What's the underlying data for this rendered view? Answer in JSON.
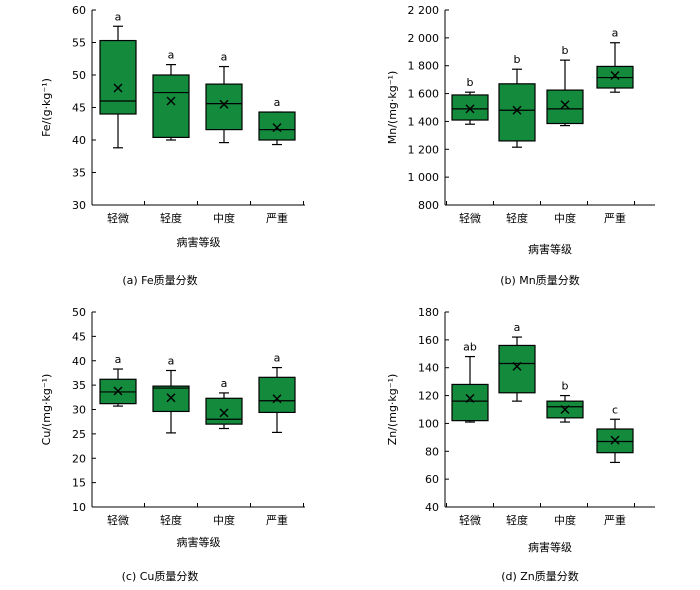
{
  "figure": {
    "box_fill": "#138a3c",
    "stroke": "#000000"
  },
  "chart_data": [
    {
      "id": "a",
      "type": "box",
      "caption": "(a)  Fe质量分数",
      "ylabel": "Fe/(g·kg⁻¹)",
      "xlabel": "病害等级",
      "ylim": [
        30,
        60
      ],
      "yticks": [
        30,
        35,
        40,
        45,
        50,
        55,
        60
      ],
      "ytick_labels": [
        "30",
        "35",
        "40",
        "45",
        "50",
        "55",
        "60"
      ],
      "categories": [
        "轻微",
        "轻度",
        "中度",
        "严重"
      ],
      "boxes": [
        {
          "min": 38.8,
          "q1": 44.0,
          "median": 46.0,
          "q3": 55.3,
          "max": 57.5,
          "mean": 48.0,
          "letter": "a"
        },
        {
          "min": 40.0,
          "q1": 40.4,
          "median": 47.3,
          "q3": 50.0,
          "max": 51.6,
          "mean": 46.0,
          "letter": "a"
        },
        {
          "min": 39.6,
          "q1": 41.6,
          "median": 45.6,
          "q3": 48.6,
          "max": 51.3,
          "mean": 45.5,
          "letter": "a"
        },
        {
          "min": 39.3,
          "q1": 40.0,
          "median": 41.6,
          "q3": 44.3,
          "max": 44.3,
          "mean": 41.9,
          "letter": "a"
        }
      ]
    },
    {
      "id": "b",
      "type": "box",
      "caption": "(b)  Mn质量分数",
      "ylabel": "Mn/(mg·kg⁻¹)",
      "xlabel": "病害等级",
      "ylim": [
        800,
        2200
      ],
      "yticks": [
        800,
        1000,
        1200,
        1400,
        1600,
        1800,
        2000,
        2200
      ],
      "ytick_labels": [
        "800",
        "1 000",
        "1 200",
        "1 400",
        "1 600",
        "1 800",
        "2 000",
        "2 200"
      ],
      "categories": [
        "轻微",
        "轻度",
        "中度",
        "严重"
      ],
      "boxes": [
        {
          "min": 1380,
          "q1": 1410,
          "median": 1490,
          "q3": 1590,
          "max": 1610,
          "mean": 1490,
          "letter": "b"
        },
        {
          "min": 1215,
          "q1": 1260,
          "median": 1480,
          "q3": 1670,
          "max": 1775,
          "mean": 1480,
          "letter": "b"
        },
        {
          "min": 1370,
          "q1": 1385,
          "median": 1490,
          "q3": 1625,
          "max": 1840,
          "mean": 1520,
          "letter": "b"
        },
        {
          "min": 1610,
          "q1": 1640,
          "median": 1715,
          "q3": 1795,
          "max": 1965,
          "mean": 1730,
          "letter": "a"
        }
      ]
    },
    {
      "id": "c",
      "type": "box",
      "caption": "(c)  Cu质量分数",
      "ylabel": "Cu/(mg·kg⁻¹)",
      "xlabel": "病害等级",
      "ylim": [
        10,
        50
      ],
      "yticks": [
        10,
        15,
        20,
        25,
        30,
        35,
        40,
        45,
        50
      ],
      "ytick_labels": [
        "10",
        "15",
        "20",
        "25",
        "30",
        "35",
        "40",
        "45",
        "50"
      ],
      "categories": [
        "轻微",
        "轻度",
        "中度",
        "严重"
      ],
      "boxes": [
        {
          "min": 30.7,
          "q1": 31.2,
          "median": 33.6,
          "q3": 36.2,
          "max": 38.3,
          "mean": 33.8,
          "letter": "a"
        },
        {
          "min": 25.2,
          "q1": 29.6,
          "median": 34.4,
          "q3": 34.8,
          "max": 38.0,
          "mean": 32.4,
          "letter": "a"
        },
        {
          "min": 26.1,
          "q1": 27.0,
          "median": 28.0,
          "q3": 32.3,
          "max": 33.4,
          "mean": 29.3,
          "letter": "a"
        },
        {
          "min": 25.3,
          "q1": 29.4,
          "median": 31.8,
          "q3": 36.6,
          "max": 38.6,
          "mean": 32.2,
          "letter": "a"
        }
      ]
    },
    {
      "id": "d",
      "type": "box",
      "caption": "(d)  Zn质量分数",
      "ylabel": "Zn/(mg·kg⁻¹)",
      "xlabel": "病害等级",
      "ylim": [
        40,
        180
      ],
      "yticks": [
        40,
        60,
        80,
        100,
        120,
        140,
        160,
        180
      ],
      "ytick_labels": [
        "40",
        "60",
        "80",
        "100",
        "120",
        "140",
        "160",
        "180"
      ],
      "categories": [
        "轻微",
        "轻度",
        "中度",
        "严重"
      ],
      "boxes": [
        {
          "min": 101,
          "q1": 102,
          "median": 116,
          "q3": 128,
          "max": 148,
          "mean": 118,
          "letter": "ab"
        },
        {
          "min": 116,
          "q1": 122,
          "median": 143,
          "q3": 156,
          "max": 162,
          "mean": 141,
          "letter": "a"
        },
        {
          "min": 101,
          "q1": 104,
          "median": 112,
          "q3": 116,
          "max": 120,
          "mean": 110,
          "letter": "b"
        },
        {
          "min": 72,
          "q1": 79,
          "median": 87,
          "q3": 96,
          "max": 103,
          "mean": 88,
          "letter": "c"
        }
      ]
    }
  ]
}
